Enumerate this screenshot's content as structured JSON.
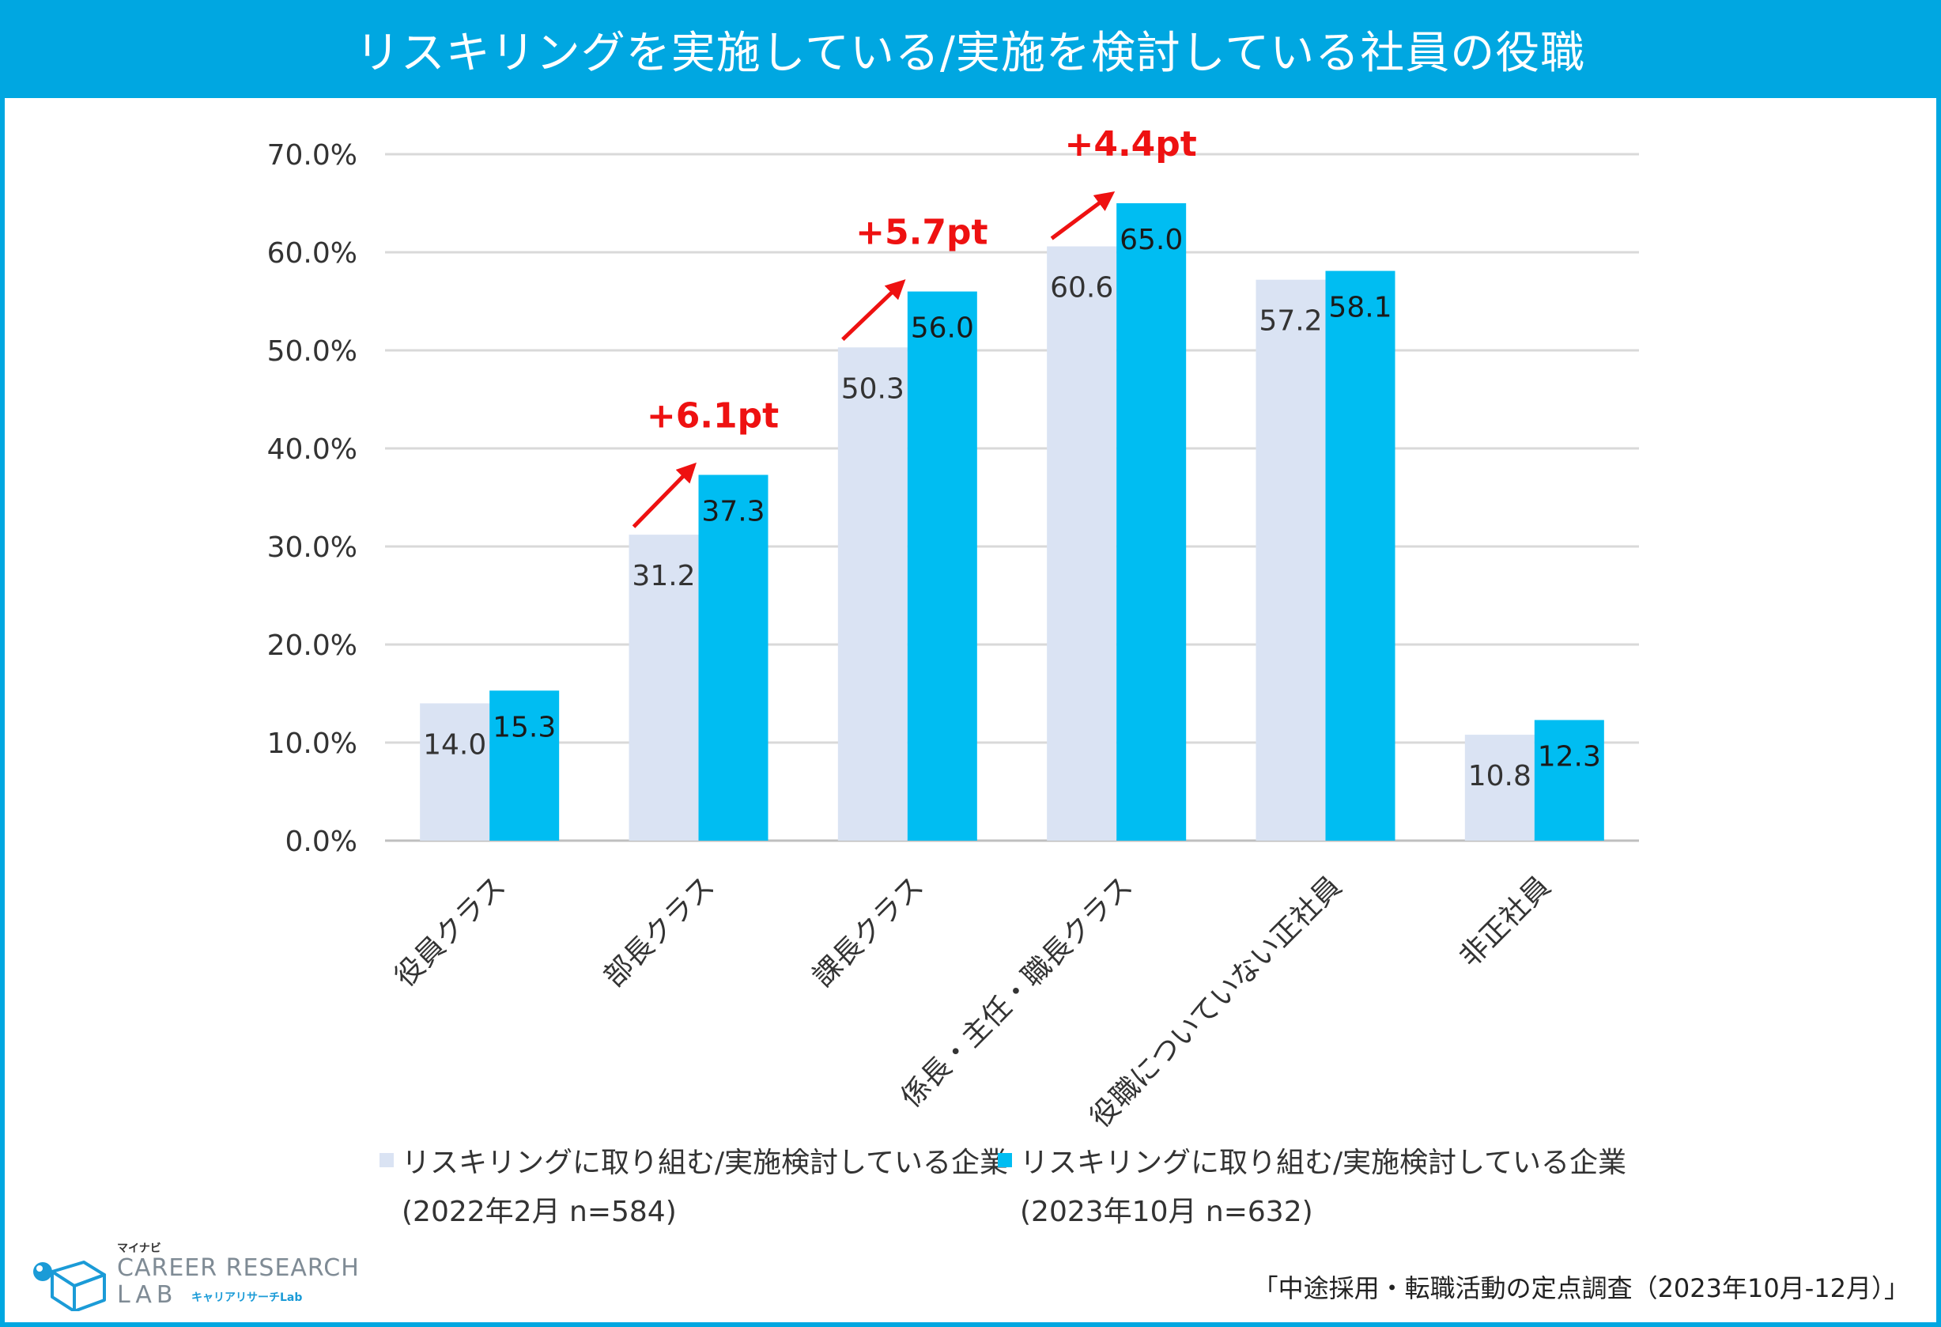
{
  "title": "リスキリングを実施している/実施を検討している社員の役職",
  "colors": {
    "title_bg": "#00a7e1",
    "series_2022": "#dae3f3",
    "series_2023": "#00bdf2",
    "annotation": "#ee1111",
    "grid": "#d9d9d9"
  },
  "chart_data": {
    "type": "bar",
    "categories": [
      "役員クラス",
      "部長クラス",
      "課長クラス",
      "係長・主任・職長クラス",
      "役職についていない正社員",
      "非正社員"
    ],
    "series": [
      {
        "name": "リスキリングに取り組む/実施検討している企業 (2022年2月 n=584)",
        "values": [
          14.0,
          31.2,
          50.3,
          60.6,
          57.2,
          10.8
        ],
        "labels": [
          "14.0",
          "31.2",
          "50.3",
          "60.6",
          "57.2",
          "10.8"
        ]
      },
      {
        "name": "リスキリングに取り組む/実施検討している企業 (2023年10月 n=632)",
        "values": [
          15.3,
          37.3,
          56.0,
          65.0,
          58.1,
          12.3
        ],
        "labels": [
          "15.3",
          "37.3",
          "56.0",
          "65.0",
          "58.1",
          "12.3"
        ]
      }
    ],
    "y_ticks": [
      "0.0%",
      "10.0%",
      "20.0%",
      "30.0%",
      "40.0%",
      "50.0%",
      "60.0%",
      "70.0%"
    ],
    "ylim": [
      0,
      70
    ],
    "grid": true,
    "legend_position": "bottom",
    "annotations": [
      {
        "category": "部長クラス",
        "text": "+6.1pt"
      },
      {
        "category": "課長クラス",
        "text": "+5.7pt"
      },
      {
        "category": "係長・主任・職長クラス",
        "text": "+4.4pt"
      }
    ]
  },
  "legend": {
    "series1_line1": "リスキリングに取り組む/実施検討している企業",
    "series1_line2": "(2022年2月 n=584)",
    "series2_line1": "リスキリングに取り組む/実施検討している企業",
    "series2_line2": "(2023年10月 n=632)"
  },
  "source": "「中途採用・転職活動の定点調査（2023年10月-12月）」",
  "logo": {
    "brand_small": "マイナビ",
    "brand_main": "CAREER RESEARCH",
    "brand_lab": "LAB",
    "brand_jp": "キャリアリサーチLab"
  }
}
